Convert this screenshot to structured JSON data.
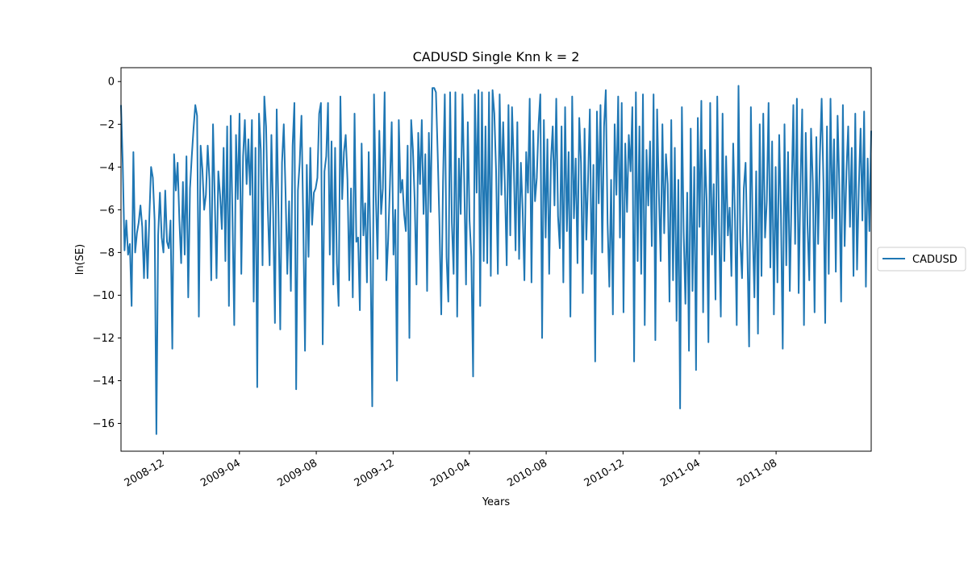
{
  "chart_data": {
    "type": "line",
    "title": "CADUSD Single Knn k = 2",
    "xlabel": "Years",
    "ylabel": "ln(SE)",
    "x_range": [
      "2008-09-25",
      "2011-12-30"
    ],
    "ylim": [
      -17.3,
      0.65
    ],
    "x_tick_labels": [
      "2008-12",
      "2009-04",
      "2009-08",
      "2009-12",
      "2010-04",
      "2010-08",
      "2010-12",
      "2011-04",
      "2011-08"
    ],
    "y_ticks": [
      0,
      -2,
      -4,
      -6,
      -8,
      -10,
      -12,
      -14,
      -16
    ],
    "y_tick_labels": [
      "0",
      "−2",
      "−4",
      "−6",
      "−8",
      "−10",
      "−12",
      "−14",
      "−16"
    ],
    "grid": false,
    "legend_position": "center-right-outside",
    "series": [
      {
        "name": "CADUSD",
        "color": "#1f77b4",
        "x_start": "2008-09-25",
        "x_end": "2011-12-30",
        "values": [
          -1.1,
          -3.9,
          -7.9,
          -6.5,
          -8.1,
          -7.6,
          -10.5,
          -3.3,
          -8.0,
          -7.1,
          -6.6,
          -5.8,
          -6.8,
          -9.2,
          -6.5,
          -9.2,
          -6.4,
          -4.0,
          -4.5,
          -6.5,
          -16.5,
          -7.2,
          -5.2,
          -7.3,
          -8.0,
          -5.1,
          -7.5,
          -7.8,
          -6.5,
          -12.5,
          -3.4,
          -5.1,
          -3.8,
          -6.5,
          -8.5,
          -4.7,
          -8.1,
          -3.5,
          -10.1,
          -5.0,
          -3.5,
          -2.2,
          -1.1,
          -1.6,
          -11.0,
          -3.0,
          -4.1,
          -6.0,
          -5.3,
          -3.0,
          -4.6,
          -9.3,
          -2.0,
          -5.5,
          -9.2,
          -4.2,
          -5.3,
          -6.9,
          -3.1,
          -8.4,
          -2.1,
          -10.5,
          -1.6,
          -6.3,
          -11.4,
          -2.5,
          -5.5,
          -1.5,
          -9.0,
          -3.5,
          -1.8,
          -4.8,
          -2.7,
          -5.3,
          -1.8,
          -10.3,
          -3.1,
          -14.3,
          -1.5,
          -3.2,
          -8.6,
          -0.7,
          -2.1,
          -6.0,
          -8.6,
          -2.5,
          -6.2,
          -11.3,
          -1.3,
          -6.1,
          -11.6,
          -3.8,
          -2.0,
          -5.2,
          -9.0,
          -5.6,
          -9.8,
          -3.0,
          -1.0,
          -14.4,
          -5.1,
          -3.8,
          -1.6,
          -6.5,
          -12.6,
          -3.9,
          -8.2,
          -3.1,
          -6.7,
          -5.2,
          -5.0,
          -4.5,
          -1.5,
          -1.0,
          -12.3,
          -4.2,
          -3.5,
          -1.0,
          -8.1,
          -2.8,
          -9.5,
          -3.1,
          -8.5,
          -10.5,
          -0.7,
          -5.5,
          -3.3,
          -2.5,
          -4.6,
          -9.3,
          -5.0,
          -10.1,
          -1.5,
          -7.5,
          -7.3,
          -10.7,
          -2.9,
          -7.2,
          -5.7,
          -9.4,
          -3.3,
          -8.0,
          -15.2,
          -0.6,
          -5.3,
          -8.3,
          -2.3,
          -6.2,
          -5.0,
          -0.5,
          -9.3,
          -7.4,
          -4.8,
          -1.9,
          -8.1,
          -6.0,
          -14.0,
          -1.8,
          -5.2,
          -4.6,
          -6.2,
          -7.0,
          -3.0,
          -12.0,
          -1.8,
          -3.2,
          -5.6,
          -9.5,
          -2.4,
          -4.8,
          -1.8,
          -6.2,
          -3.4,
          -9.8,
          -2.4,
          -6.1,
          -0.3,
          -0.3,
          -0.5,
          -3.4,
          -6.7,
          -10.9,
          -4.7,
          -0.6,
          -8.2,
          -10.3,
          -0.5,
          -6.6,
          -9.0,
          -0.5,
          -11.0,
          -3.6,
          -6.2,
          -0.6,
          -4.7,
          -9.5,
          -1.9,
          -6.5,
          -8.2,
          -13.8,
          -0.6,
          -5.2,
          -0.4,
          -10.5,
          -0.5,
          -8.4,
          -2.1,
          -8.5,
          -0.5,
          -9.1,
          -0.4,
          -1.5,
          -4.2,
          -9.0,
          -0.6,
          -5.3,
          -1.9,
          -5.0,
          -8.6,
          -1.1,
          -7.2,
          -1.2,
          -3.9,
          -7.9,
          -1.9,
          -8.3,
          -3.8,
          -6.0,
          -9.3,
          -3.3,
          -5.2,
          -0.8,
          -9.4,
          -2.3,
          -5.6,
          -4.5,
          -2.0,
          -0.6,
          -12.0,
          -1.8,
          -7.3,
          -2.7,
          -9.0,
          -3.7,
          -2.1,
          -5.8,
          -0.8,
          -6.3,
          -7.8,
          -2.1,
          -9.4,
          -1.2,
          -7.0,
          -3.3,
          -11.0,
          -0.7,
          -6.4,
          -3.6,
          -8.5,
          -1.7,
          -3.8,
          -9.9,
          -2.2,
          -7.4,
          -4.5,
          -1.3,
          -9.0,
          -3.9,
          -13.1,
          -1.4,
          -5.7,
          -1.1,
          -8.0,
          -2.1,
          -0.4,
          -6.6,
          -9.6,
          -4.6,
          -10.9,
          -2.0,
          -5.3,
          -0.7,
          -7.3,
          -1.0,
          -10.8,
          -2.9,
          -6.1,
          -2.5,
          -4.2,
          -1.2,
          -13.1,
          -0.5,
          -8.4,
          -2.1,
          -9.0,
          -0.6,
          -11.4,
          -3.2,
          -5.8,
          -2.8,
          -7.7,
          -0.6,
          -12.1,
          -1.3,
          -5.2,
          -8.4,
          -2.0,
          -7.1,
          -3.4,
          -4.8,
          -10.3,
          -1.8,
          -9.3,
          -3.1,
          -11.2,
          -4.6,
          -15.3,
          -1.2,
          -7.0,
          -10.4,
          -5.2,
          -12.6,
          -2.2,
          -9.8,
          -4.0,
          -13.5,
          -1.7,
          -6.8,
          -0.9,
          -10.8,
          -3.2,
          -5.6,
          -12.2,
          -1.0,
          -8.1,
          -4.8,
          -10.2,
          -0.7,
          -6.8,
          -11.0,
          -1.5,
          -8.4,
          -3.5,
          -7.2,
          -5.9,
          -9.1,
          -2.9,
          -6.4,
          -11.4,
          -0.2,
          -7.4,
          -9.2,
          -5.0,
          -3.8,
          -7.8,
          -12.4,
          -1.2,
          -6.9,
          -10.1,
          -4.2,
          -11.8,
          -2.0,
          -9.1,
          -1.5,
          -7.3,
          -5.6,
          -1.0,
          -8.7,
          -2.8,
          -10.9,
          -4.0,
          -9.4,
          -2.5,
          -6.3,
          -12.5,
          -2.0,
          -8.6,
          -3.3,
          -9.8,
          -5.3,
          -1.1,
          -7.6,
          -0.8,
          -9.9,
          -4.9,
          -1.3,
          -11.4,
          -2.4,
          -6.7,
          -9.3,
          -2.2,
          -4.7,
          -10.8,
          -2.6,
          -7.6,
          -3.5,
          -0.8,
          -4.7,
          -11.3,
          -2.1,
          -9.0,
          -0.8,
          -6.4,
          -2.7,
          -8.9,
          -1.6,
          -4.9,
          -10.3,
          -1.1,
          -7.7,
          -4.2,
          -2.1,
          -6.8,
          -3.1,
          -9.1,
          -1.5,
          -8.8,
          -5.0,
          -2.2,
          -6.5,
          -1.4,
          -9.6,
          -3.6,
          -7.0,
          -2.3
        ]
      }
    ]
  },
  "legend": {
    "label": "CADUSD"
  }
}
